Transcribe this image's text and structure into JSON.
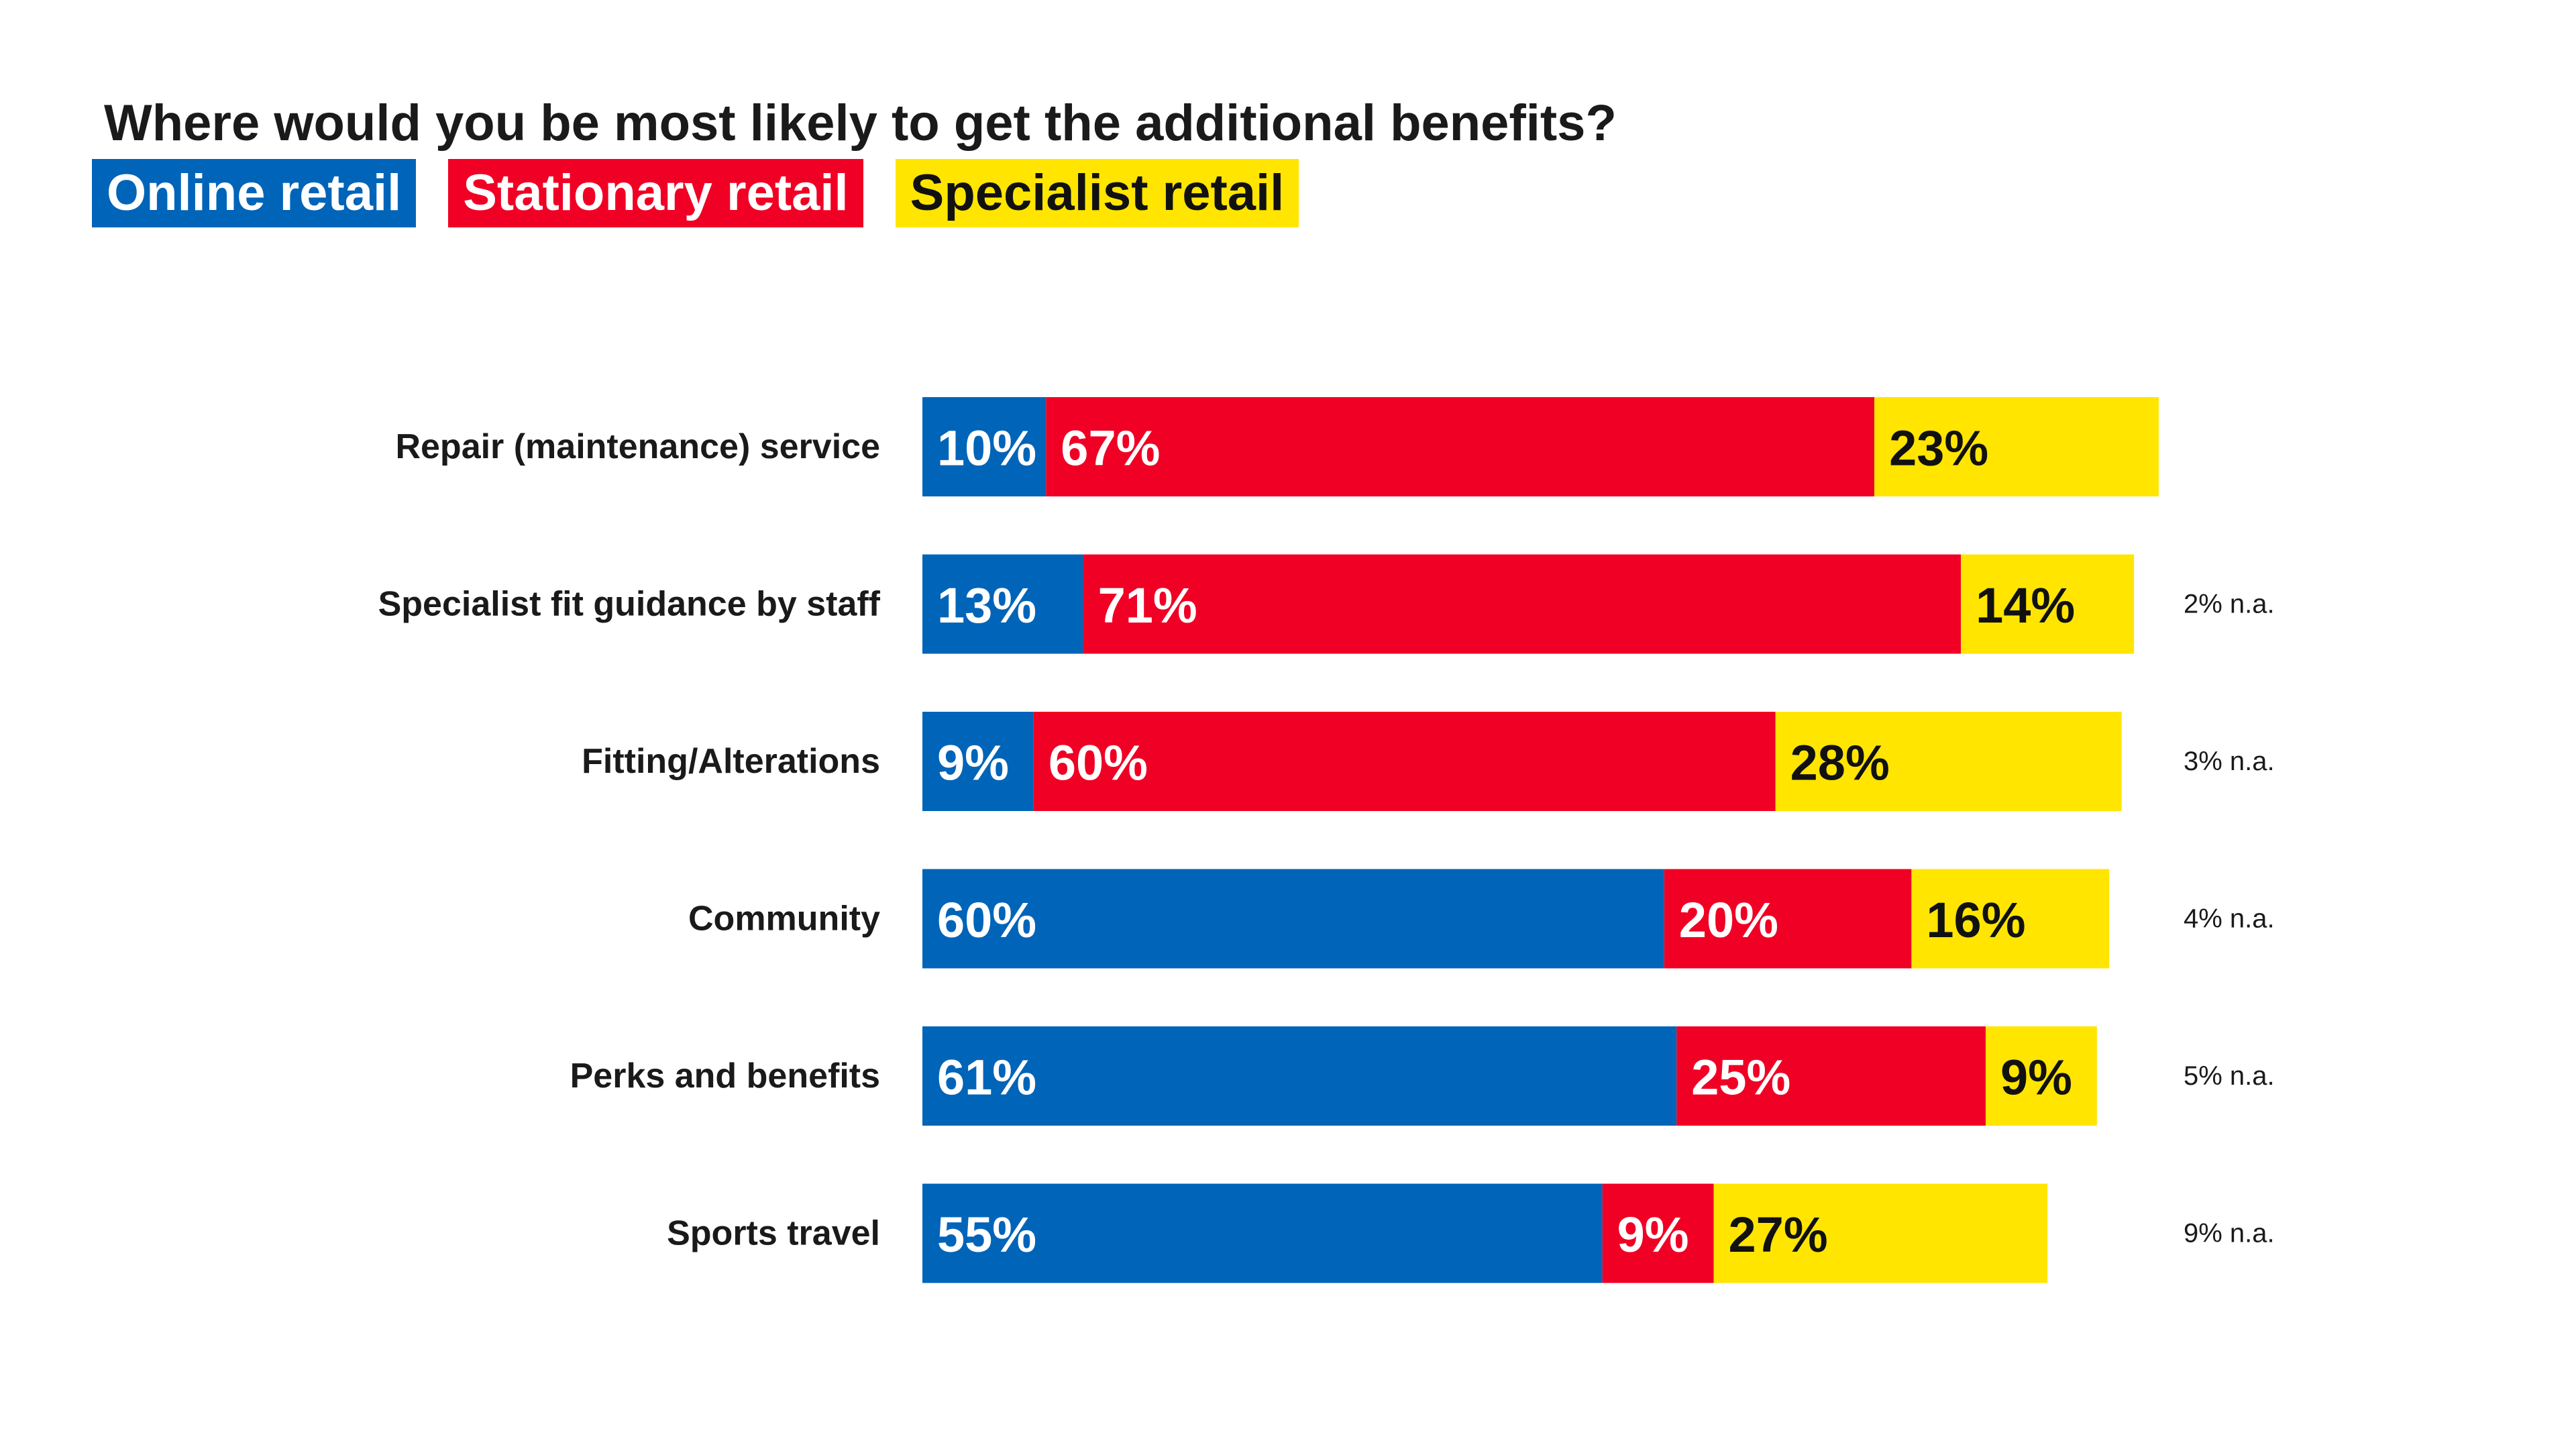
{
  "chart_data": {
    "type": "bar",
    "orientation": "horizontal",
    "stacked": true,
    "title": "Where would you be most likely to get the additional benefits?",
    "categories": [
      "Repair (maintenance) service",
      "Specialist fit guidance by staff",
      "Fitting/Alterations",
      "Community",
      "Perks and benefits",
      "Sports travel"
    ],
    "series": [
      {
        "name": "Online retail",
        "values": [
          10,
          13,
          9,
          60,
          61,
          55
        ],
        "color": "#0064b9",
        "label_color": "#ffffff"
      },
      {
        "name": "Stationary retail",
        "values": [
          67,
          71,
          60,
          20,
          25,
          9
        ],
        "color": "#f00024",
        "label_color": "#ffffff"
      },
      {
        "name": "Specialist retail",
        "values": [
          23,
          14,
          28,
          16,
          9,
          27
        ],
        "color": "#ffe500",
        "label_color": "#111111"
      }
    ],
    "value_suffix": "%",
    "notes": [
      "",
      "2% n.a.",
      "3% n.a.",
      "4% n.a.",
      "5% n.a.",
      "9% n.a."
    ],
    "xlim": [
      0,
      100
    ],
    "grid": false,
    "legend_position": "top-left"
  }
}
